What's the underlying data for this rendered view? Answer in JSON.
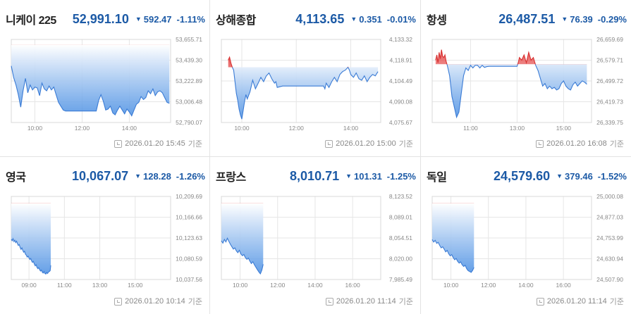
{
  "panels": [
    {
      "name": "니케이 225",
      "price": "52,991.10",
      "arrow": "▼",
      "change": "592.47",
      "percent": "-1.11%",
      "timestamp": "2026.01.20 15:45",
      "suffix": "기준",
      "chart_data": {
        "type": "line",
        "x_range": [
          9.0,
          15.75
        ],
        "x_ticks": [
          {
            "v": 10,
            "label": "10:00"
          },
          {
            "v": 12,
            "label": "12:00"
          },
          {
            "v": 14,
            "label": "14:00"
          }
        ],
        "y_range": [
          52790.07,
          53655.71
        ],
        "y_ticks": [
          "53,655.71",
          "53,439.30",
          "53,222.89",
          "53,006.48",
          "52,790.07"
        ],
        "base": 53600,
        "x": [
          9.0,
          9.1,
          9.2,
          9.3,
          9.4,
          9.5,
          9.6,
          9.7,
          9.8,
          9.9,
          10.0,
          10.1,
          10.2,
          10.3,
          10.4,
          10.5,
          10.6,
          10.7,
          10.8,
          10.9,
          11.0,
          11.1,
          11.2,
          11.3,
          11.5,
          11.7,
          11.9,
          12.1,
          12.3,
          12.6,
          12.7,
          12.8,
          12.9,
          13.0,
          13.1,
          13.2,
          13.3,
          13.4,
          13.5,
          13.6,
          13.7,
          13.8,
          13.9,
          14.0,
          14.1,
          14.2,
          14.3,
          14.4,
          14.5,
          14.6,
          14.7,
          14.8,
          14.9,
          15.0,
          15.1,
          15.2,
          15.3,
          15.4,
          15.5,
          15.6,
          15.7
        ],
        "values": [
          53380,
          53260,
          53180,
          53080,
          52950,
          53120,
          53250,
          53100,
          53180,
          53130,
          53160,
          53150,
          53070,
          53200,
          53140,
          53120,
          53170,
          53130,
          53160,
          53080,
          53000,
          52960,
          52920,
          52910,
          52910,
          52910,
          52910,
          52910,
          52910,
          52910,
          53020,
          53080,
          53010,
          52920,
          52930,
          52960,
          52890,
          52870,
          52920,
          52960,
          52920,
          52880,
          52930,
          52900,
          52860,
          52920,
          52980,
          53000,
          53060,
          53030,
          53050,
          53120,
          53090,
          53140,
          53070,
          53110,
          53120,
          53100,
          53050,
          53000,
          52990
        ]
      }
    },
    {
      "name": "상해종합",
      "price": "4,113.65",
      "arrow": "▼",
      "change": "0.351",
      "percent": "-0.01%",
      "timestamp": "2026.01.20 15:00",
      "suffix": "기준",
      "chart_data": {
        "type": "line",
        "x_range": [
          9.25,
          15.1
        ],
        "x_ticks": [
          {
            "v": 10,
            "label": "10:00"
          },
          {
            "v": 12,
            "label": "12:00"
          },
          {
            "v": 14,
            "label": "14:00"
          }
        ],
        "y_range": [
          4075.67,
          4133.32
        ],
        "y_ticks": [
          "4,133.32",
          "4,118.91",
          "4,104.49",
          "4,090.08",
          "4,075.67"
        ],
        "base": 4114.0,
        "x": [
          9.5,
          9.55,
          9.6,
          9.65,
          9.7,
          9.75,
          9.8,
          9.85,
          9.9,
          9.95,
          10.0,
          10.05,
          10.1,
          10.15,
          10.2,
          10.3,
          10.4,
          10.5,
          10.6,
          10.7,
          10.8,
          10.9,
          11.0,
          11.1,
          11.2,
          11.25,
          11.3,
          11.5,
          13.0,
          13.05,
          13.1,
          13.2,
          13.3,
          13.4,
          13.5,
          13.6,
          13.7,
          13.8,
          13.9,
          13.95,
          14.0,
          14.1,
          14.2,
          14.3,
          14.4,
          14.5,
          14.6,
          14.7,
          14.8,
          14.9,
          15.0
        ],
        "values": [
          4119,
          4121,
          4117,
          4114,
          4112,
          4104,
          4096,
          4091,
          4085,
          4081,
          4078,
          4084,
          4090,
          4095,
          4092,
          4097,
          4105,
          4099,
          4103,
          4107,
          4104,
          4108,
          4110,
          4106,
          4103,
          4104,
          4100,
          4101,
          4101,
          4099,
          4103,
          4100,
          4104,
          4107,
          4104,
          4109,
          4111,
          4112,
          4114,
          4112,
          4109,
          4107,
          4110,
          4106,
          4105,
          4108,
          4104,
          4107,
          4109,
          4108,
          4111
        ]
      }
    },
    {
      "name": "항셍",
      "price": "26,487.51",
      "arrow": "▼",
      "change": "76.39",
      "percent": "-0.29%",
      "timestamp": "2026.01.20 16:08",
      "suffix": "기준",
      "chart_data": {
        "type": "line",
        "x_range": [
          9.35,
          16.2
        ],
        "x_ticks": [
          {
            "v": 11,
            "label": "11:00"
          },
          {
            "v": 13,
            "label": "13:00"
          },
          {
            "v": 15,
            "label": "15:00"
          }
        ],
        "y_range": [
          26339.75,
          26659.69
        ],
        "y_ticks": [
          "26,659.69",
          "26,579.71",
          "26,499.72",
          "26,419.73",
          "26,339.75"
        ],
        "base": 26563.9,
        "x": [
          9.5,
          9.55,
          9.6,
          9.65,
          9.7,
          9.75,
          9.8,
          9.85,
          9.9,
          9.95,
          10.0,
          10.05,
          10.1,
          10.15,
          10.2,
          10.3,
          10.4,
          10.5,
          10.6,
          10.7,
          10.8,
          10.9,
          11.0,
          11.1,
          11.2,
          11.3,
          11.4,
          11.5,
          11.6,
          11.7,
          11.8,
          11.9,
          12.0,
          13.0,
          13.05,
          13.1,
          13.2,
          13.3,
          13.4,
          13.5,
          13.6,
          13.7,
          13.8,
          13.9,
          14.0,
          14.1,
          14.2,
          14.3,
          14.4,
          14.5,
          14.6,
          14.7,
          14.8,
          14.9,
          15.0,
          15.1,
          15.2,
          15.3,
          15.4,
          15.5,
          15.6,
          15.7,
          15.8,
          15.9,
          16.0
        ],
        "values": [
          26580,
          26600,
          26570,
          26610,
          26585,
          26620,
          26595,
          26590,
          26600,
          26575,
          26560,
          26540,
          26520,
          26480,
          26440,
          26400,
          26360,
          26380,
          26450,
          26520,
          26550,
          26540,
          26560,
          26550,
          26560,
          26560,
          26550,
          26560,
          26552,
          26555,
          26556,
          26556,
          26556,
          26556,
          26570,
          26590,
          26580,
          26600,
          26570,
          26610,
          26580,
          26590,
          26560,
          26540,
          26510,
          26480,
          26490,
          26470,
          26480,
          26470,
          26475,
          26465,
          26470,
          26490,
          26500,
          26480,
          26470,
          26465,
          26485,
          26495,
          26480,
          26490,
          26500,
          26495,
          26487
        ]
      }
    },
    {
      "name": "영국",
      "price": "10,067.07",
      "arrow": "▼",
      "change": "128.28",
      "percent": "-1.26%",
      "timestamp": "2026.01.20 10:14",
      "suffix": "기준",
      "chart_data": {
        "type": "line",
        "x_range": [
          8.0,
          17.0
        ],
        "x_ticks": [
          {
            "v": 9,
            "label": "09:00"
          },
          {
            "v": 11,
            "label": "11:00"
          },
          {
            "v": 13,
            "label": "13:00"
          },
          {
            "v": 15,
            "label": "15:00"
          }
        ],
        "y_range": [
          10037.56,
          10209.69
        ],
        "y_ticks": [
          "10,209.69",
          "10,166.66",
          "10,123.63",
          "10,080.59",
          "10,037.56"
        ],
        "base": 10195.35,
        "x": [
          8.0,
          8.05,
          8.1,
          8.15,
          8.2,
          8.25,
          8.3,
          8.35,
          8.4,
          8.45,
          8.5,
          8.55,
          8.6,
          8.65,
          8.7,
          8.75,
          8.8,
          8.85,
          8.9,
          8.95,
          9.0,
          9.05,
          9.1,
          9.15,
          9.2,
          9.25,
          9.3,
          9.35,
          9.4,
          9.45,
          9.5,
          9.55,
          9.6,
          9.65,
          9.7,
          9.75,
          9.8,
          9.85,
          9.9,
          9.95,
          10.0,
          10.05,
          10.1,
          10.15,
          10.2,
          10.23
        ],
        "values": [
          10121,
          10118,
          10122,
          10116,
          10119,
          10114,
          10117,
          10112,
          10108,
          10110,
          10104,
          10100,
          10103,
          10098,
          10094,
          10096,
          10090,
          10088,
          10084,
          10086,
          10082,
          10079,
          10081,
          10076,
          10073,
          10075,
          10070,
          10066,
          10068,
          10063,
          10060,
          10062,
          10058,
          10055,
          10057,
          10053,
          10051,
          10054,
          10050,
          10049,
          10052,
          10050,
          10053,
          10054,
          10056,
          10067
        ]
      }
    },
    {
      "name": "프랑스",
      "price": "8,010.71",
      "arrow": "▼",
      "change": "101.31",
      "percent": "-1.25%",
      "timestamp": "2026.01.20 11:14",
      "suffix": "기준",
      "chart_data": {
        "type": "line",
        "x_range": [
          9.0,
          17.5
        ],
        "x_ticks": [
          {
            "v": 10,
            "label": "10:00"
          },
          {
            "v": 12,
            "label": "12:00"
          },
          {
            "v": 14,
            "label": "14:00"
          },
          {
            "v": 16,
            "label": "16:00"
          }
        ],
        "y_range": [
          7985.49,
          8123.52
        ],
        "y_ticks": [
          "8,123.52",
          "8,089.01",
          "8,054.51",
          "8,020.00",
          "7,985.49"
        ],
        "base": 8112.02,
        "x": [
          9.0,
          9.08,
          9.16,
          9.24,
          9.32,
          9.4,
          9.48,
          9.56,
          9.64,
          9.72,
          9.8,
          9.88,
          9.96,
          10.04,
          10.12,
          10.2,
          10.28,
          10.36,
          10.44,
          10.52,
          10.6,
          10.68,
          10.76,
          10.84,
          10.92,
          11.0,
          11.08,
          11.16,
          11.23
        ],
        "values": [
          8050,
          8046,
          8052,
          8048,
          8054,
          8049,
          8044,
          8040,
          8036,
          8038,
          8033,
          8030,
          8034,
          8028,
          8025,
          8027,
          8022,
          8019,
          8021,
          8016,
          8012,
          8015,
          8010,
          8006,
          8002,
          7998,
          7995,
          8001,
          8010.71
        ]
      }
    },
    {
      "name": "독일",
      "price": "24,579.60",
      "arrow": "▼",
      "change": "379.46",
      "percent": "-1.52%",
      "timestamp": "2026.01.20 11:14",
      "suffix": "기준",
      "chart_data": {
        "type": "line",
        "x_range": [
          9.0,
          17.5
        ],
        "x_ticks": [
          {
            "v": 10,
            "label": "10:00"
          },
          {
            "v": 12,
            "label": "12:00"
          },
          {
            "v": 14,
            "label": "14:00"
          },
          {
            "v": 16,
            "label": "16:00"
          }
        ],
        "y_range": [
          24507.9,
          25000.08
        ],
        "y_ticks": [
          "25,000.08",
          "24,877.03",
          "24,753.99",
          "24,630.94",
          "24,507.90"
        ],
        "base": 24959.06,
        "x": [
          9.0,
          9.08,
          9.16,
          9.24,
          9.32,
          9.4,
          9.48,
          9.56,
          9.64,
          9.72,
          9.8,
          9.88,
          9.96,
          10.04,
          10.12,
          10.2,
          10.28,
          10.36,
          10.44,
          10.52,
          10.6,
          10.68,
          10.76,
          10.84,
          10.92,
          11.0,
          11.08,
          11.16,
          11.23
        ],
        "values": [
          24745,
          24730,
          24740,
          24722,
          24728,
          24710,
          24695,
          24702,
          24688,
          24672,
          24680,
          24660,
          24648,
          24655,
          24638,
          24625,
          24632,
          24615,
          24605,
          24612,
          24595,
          24585,
          24592,
          24572,
          24560,
          24555,
          24550,
          24562,
          24579.6
        ]
      }
    }
  ]
}
